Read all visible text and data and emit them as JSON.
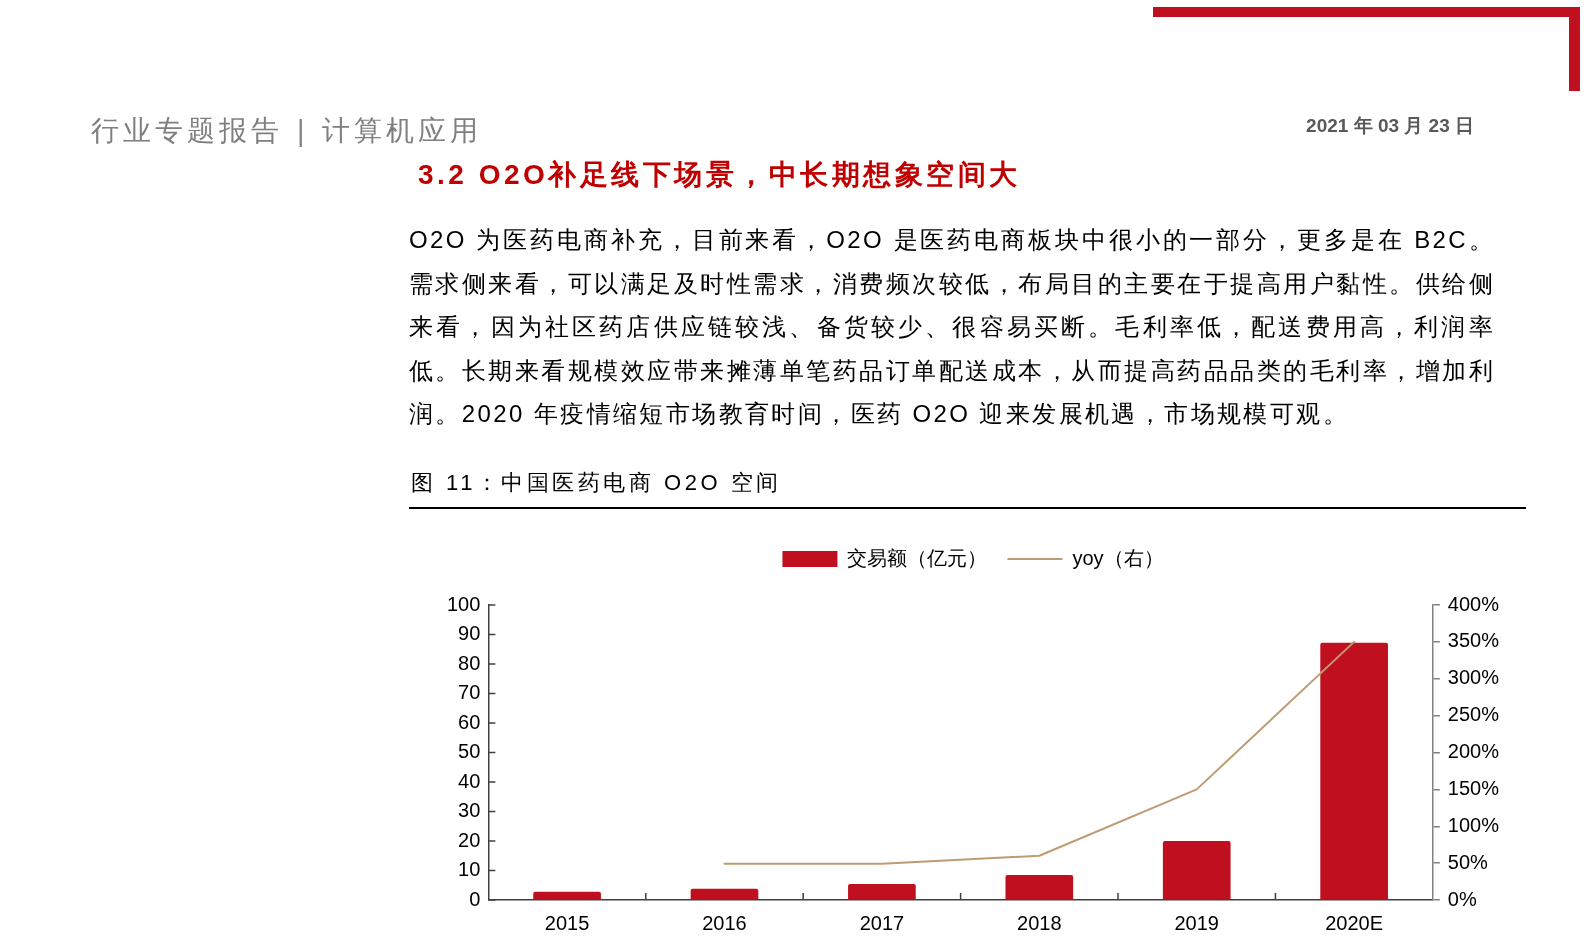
{
  "chart_data": {
    "type": "bar",
    "title": "图 11：中国医药电商 O2O 空间",
    "annotations": [
      "行业专题报告 | 计算机应用",
      "2021 年 03 月 23 日",
      "3.2 O2O补足线下场景，中长期想象空间大",
      "O2O 为医药电商补充，目前来看，O2O 是医药电商板块中很小的一部分，更多是在 B2C。需求侧来看，可以满足及时性需求，消费频次较低，布局目的主要在于提高用户黏性。供给侧来看，因为社区药店供应链较浅、备货较少、很容易买断。毛利率低，配送费用高，利润率低。长期来看规模效应带来摊薄单笔药品订单配送成本，从而提高药品品类的毛利率，增加利润。2020 年疫情缩短市场教育时间，医药 O2O 迎来发展机遇，市场规模可观。"
    ],
    "categories": [
      "2015",
      "2016",
      "2017",
      "2018",
      "2019",
      "2020E"
    ],
    "series": [
      {
        "name": "交易额（亿元）",
        "color": "#c00f1e",
        "values": [
          2.8,
          3.8,
          5.4,
          8.5,
          20,
          87.2
        ]
      },
      {
        "name": "yoy（右）",
        "type": "line",
        "axis": "y2",
        "color": "#bf9b74",
        "values": [
          null,
          49,
          49,
          60,
          150,
          350
        ]
      }
    ],
    "ylim": [
      0,
      100
    ],
    "yticks": [
      0,
      10,
      20,
      30,
      40,
      50,
      60,
      70,
      80,
      90,
      100
    ],
    "y2lim": [
      0,
      400
    ],
    "y2ticks": [
      {
        "value": 0,
        "label": "0%"
      },
      {
        "value": 50,
        "label": "50%"
      },
      {
        "value": 100,
        "label": "100%"
      },
      {
        "value": 150,
        "label": "150%"
      },
      {
        "value": 200,
        "label": "200%"
      },
      {
        "value": 250,
        "label": "250%"
      },
      {
        "value": 300,
        "label": "300%"
      },
      {
        "value": 350,
        "label": "350%"
      },
      {
        "value": 400,
        "label": "400%"
      }
    ],
    "legend": "top",
    "grid": false,
    "marker": "none"
  }
}
